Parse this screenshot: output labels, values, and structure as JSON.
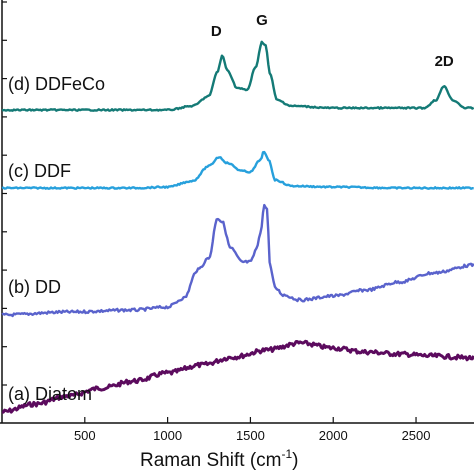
{
  "chart_data": {
    "type": "line",
    "title": "",
    "xlabel": "Raman Shift (cm",
    "xlabel_sup": "-1",
    "xlabel_close": ")",
    "ylabel": "",
    "xlim": [
      0,
      2850
    ],
    "xticks": [
      500,
      1000,
      1500,
      2000,
      2500
    ],
    "y_axis_ticks_left": true,
    "series": [
      {
        "name": "(a) Diatom",
        "color": "#5c0b5e",
        "points": [
          [
            0,
            412
          ],
          [
            200,
            404
          ],
          [
            400,
            396
          ],
          [
            600,
            388
          ],
          [
            800,
            381
          ],
          [
            1000,
            373
          ],
          [
            1200,
            365
          ],
          [
            1400,
            357
          ],
          [
            1600,
            350
          ],
          [
            1800,
            343
          ],
          [
            2000,
            348
          ],
          [
            2200,
            352
          ],
          [
            2400,
            354
          ],
          [
            2600,
            356
          ],
          [
            2850,
            358
          ]
        ]
      },
      {
        "name": "(b) DD",
        "color": "#5a63cc",
        "points": [
          [
            0,
            315
          ],
          [
            400,
            312
          ],
          [
            800,
            310
          ],
          [
            1000,
            307
          ],
          [
            1100,
            298
          ],
          [
            1180,
            270
          ],
          [
            1250,
            258
          ],
          [
            1300,
            218
          ],
          [
            1330,
            222
          ],
          [
            1380,
            248
          ],
          [
            1450,
            262
          ],
          [
            1500,
            262
          ],
          [
            1540,
            248
          ],
          [
            1560,
            232
          ],
          [
            1585,
            205
          ],
          [
            1600,
            210
          ],
          [
            1620,
            268
          ],
          [
            1650,
            288
          ],
          [
            1700,
            295
          ],
          [
            1800,
            300
          ],
          [
            2000,
            296
          ],
          [
            2200,
            290
          ],
          [
            2400,
            282
          ],
          [
            2600,
            273
          ],
          [
            2850,
            265
          ]
        ]
      },
      {
        "name": "(c) DDF",
        "color": "#27a0dc",
        "points": [
          [
            0,
            188
          ],
          [
            400,
            188
          ],
          [
            800,
            188
          ],
          [
            1000,
            187
          ],
          [
            1150,
            181
          ],
          [
            1250,
            166
          ],
          [
            1310,
            157
          ],
          [
            1360,
            163
          ],
          [
            1450,
            171
          ],
          [
            1500,
            172
          ],
          [
            1560,
            160
          ],
          [
            1580,
            152
          ],
          [
            1610,
            160
          ],
          [
            1650,
            180
          ],
          [
            1750,
            186
          ],
          [
            2000,
            187
          ],
          [
            2400,
            188
          ],
          [
            2850,
            188
          ]
        ]
      },
      {
        "name": "(d) DDFeCo",
        "color": "#147a76",
        "points": [
          [
            0,
            110
          ],
          [
            400,
            110
          ],
          [
            800,
            110
          ],
          [
            1000,
            110
          ],
          [
            1150,
            106
          ],
          [
            1250,
            96
          ],
          [
            1300,
            72
          ],
          [
            1330,
            56
          ],
          [
            1360,
            70
          ],
          [
            1420,
            88
          ],
          [
            1480,
            90
          ],
          [
            1530,
            68
          ],
          [
            1570,
            42
          ],
          [
            1590,
            45
          ],
          [
            1620,
            75
          ],
          [
            1660,
            100
          ],
          [
            1750,
            106
          ],
          [
            2000,
            108
          ],
          [
            2400,
            108
          ],
          [
            2550,
            108
          ],
          [
            2620,
            100
          ],
          [
            2670,
            86
          ],
          [
            2720,
            100
          ],
          [
            2800,
            108
          ],
          [
            2850,
            108
          ]
        ]
      }
    ],
    "peak_labels": [
      {
        "text": "D",
        "x": 1330
      },
      {
        "text": "G",
        "x": 1570
      },
      {
        "text": "2D",
        "x": 2670
      }
    ]
  }
}
